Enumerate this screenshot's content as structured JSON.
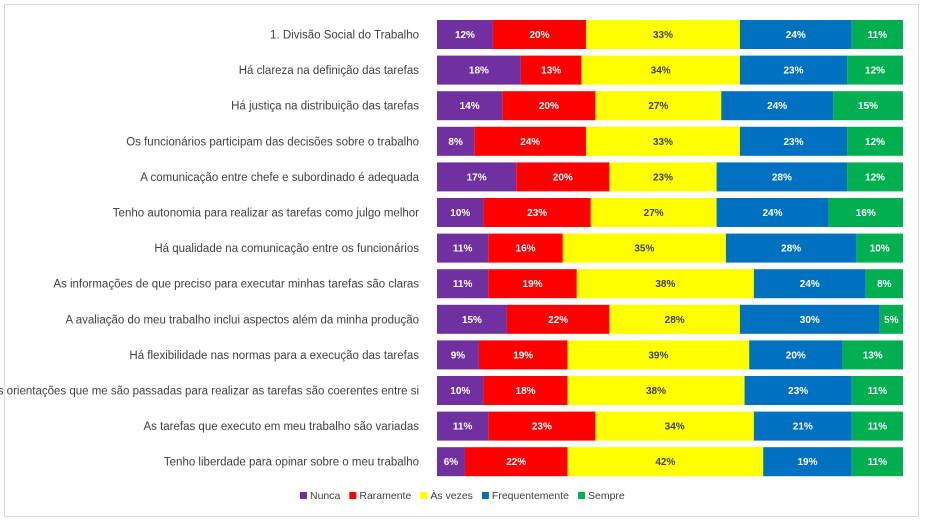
{
  "chart_data": {
    "type": "bar",
    "orientation": "horizontal",
    "stacked": true,
    "percent_stacked": true,
    "grid": false,
    "legend_position": "bottom",
    "title": "",
    "xlabel": "",
    "ylabel": "",
    "categories": [
      "1. Divisão Social do Trabalho",
      "Há clareza na definição das tarefas",
      "Há justiça na distribuição das tarefas",
      "Os funcionários participam das decisões sobre o trabalho",
      "A comunicação entre chefe e subordinado é adequada",
      "Tenho autonomia para realizar as tarefas como julgo melhor",
      "Há qualidade na comunicação entre os funcionários",
      "As informações de que preciso para executar minhas tarefas são claras",
      "A avaliação do meu trabalho inclui aspectos além da minha produção",
      "Há flexibilidade nas normas para a execução das tarefas",
      "As orientações que me são passadas para realizar as tarefas são coerentes entre si",
      "As tarefas que executo em meu trabalho são variadas",
      "Tenho liberdade para opinar sobre o meu trabalho"
    ],
    "series": [
      {
        "name": "Nunca",
        "color": "#7030A0",
        "label_color": "#ffffff",
        "values": [
          12,
          18,
          14,
          8,
          17,
          10,
          11,
          11,
          15,
          9,
          10,
          11,
          6
        ]
      },
      {
        "name": "Raramente",
        "color": "#FF0000",
        "label_color": "#ffffff",
        "values": [
          20,
          13,
          20,
          24,
          20,
          23,
          16,
          19,
          22,
          19,
          18,
          23,
          22
        ]
      },
      {
        "name": "Às vezes",
        "color": "#FFFF00",
        "label_color": "#404040",
        "values": [
          33,
          34,
          27,
          33,
          23,
          27,
          35,
          38,
          28,
          39,
          38,
          34,
          42
        ]
      },
      {
        "name": "Frequentemente",
        "color": "#0070C0",
        "label_color": "#ffffff",
        "values": [
          24,
          23,
          24,
          23,
          28,
          24,
          28,
          24,
          30,
          20,
          23,
          21,
          19
        ]
      },
      {
        "name": "Sempre",
        "color": "#00B050",
        "label_color": "#ffffff",
        "values": [
          11,
          12,
          15,
          12,
          12,
          16,
          10,
          8,
          5,
          13,
          11,
          11,
          11
        ]
      }
    ],
    "value_suffix": "%"
  }
}
